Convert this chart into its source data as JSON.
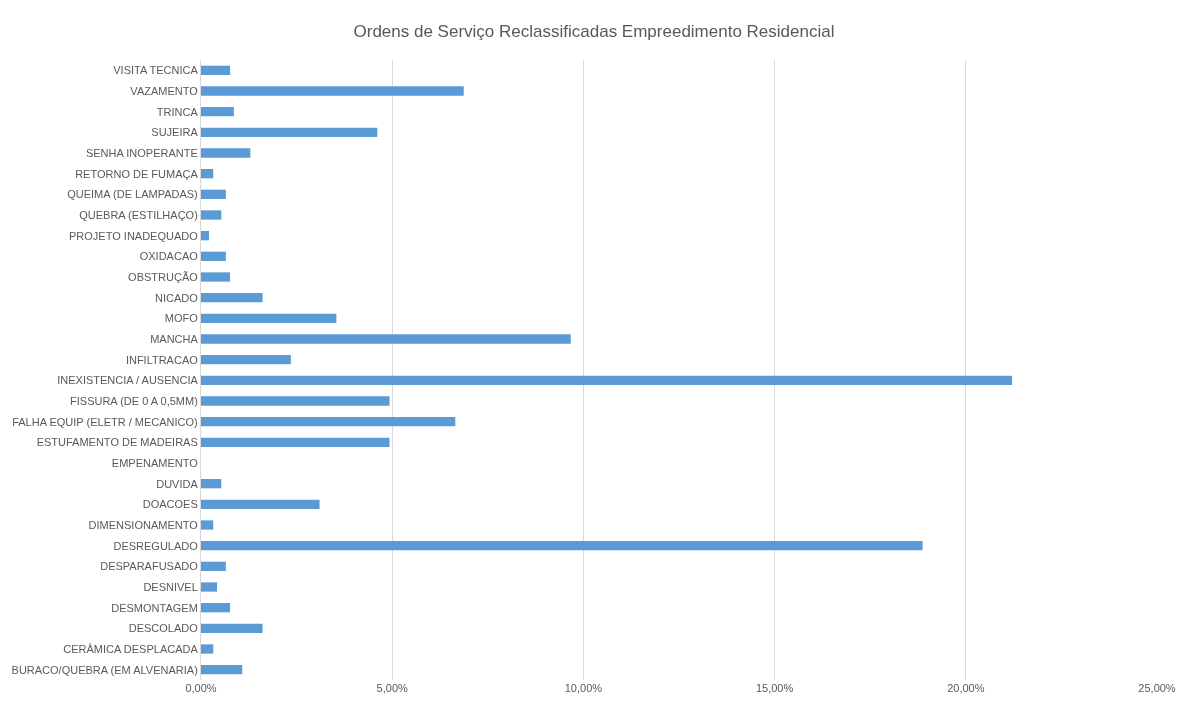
{
  "chart_data": {
    "type": "bar",
    "orientation": "horizontal",
    "title": "Ordens de Serviço Reclassificadas Empreedimento Residencial",
    "categories": [
      "VISITA TECNICA",
      "VAZAMENTO",
      "TRINCA",
      "SUJEIRA",
      "SENHA INOPERANTE",
      "RETORNO DE FUMAÇA",
      "QUEIMA (DE LAMPADAS)",
      "QUEBRA (ESTILHAÇO)",
      "PROJETO INADEQUADO",
      "OXIDACAO",
      "OBSTRUÇÃO",
      "NICADO",
      "MOFO",
      "MANCHA",
      "INFILTRACAO",
      "INEXISTENCIA / AUSENCIA",
      "FISSURA (DE 0 A 0,5MM)",
      "FALHA EQUIP (ELETR / MECANICO)",
      "ESTUFAMENTO DE MADEIRAS",
      "EMPENAMENTO",
      "DUVIDA",
      "DOACOES",
      "DIMENSIONAMENTO",
      "DESREGULADO",
      "DESPARAFUSADO",
      "DESNIVEL",
      "DESMONTAGEM",
      "DESCOLADO",
      "CERÂMICA DESPLACADA",
      "BURACO/QUEBRA (EM ALVENARIA)"
    ],
    "values": [
      0.76,
      6.87,
      0.86,
      4.61,
      1.29,
      0.32,
      0.65,
      0.53,
      0.21,
      0.65,
      0.76,
      1.61,
      3.54,
      9.67,
      2.35,
      21.21,
      4.93,
      6.65,
      4.93,
      0,
      0.53,
      3.1,
      0.32,
      18.87,
      0.65,
      0.42,
      0.76,
      1.61,
      0.32,
      1.08
    ],
    "color": "#5b9bd5",
    "xlim": [
      0,
      25
    ],
    "xticks": [
      {
        "value": 0,
        "label": "0,00%"
      },
      {
        "value": 5,
        "label": "5,00%"
      },
      {
        "value": 10,
        "label": "10,00%"
      },
      {
        "value": 15,
        "label": "15,00%"
      },
      {
        "value": 20,
        "label": "20,00%"
      },
      {
        "value": 25,
        "label": "25,00%"
      }
    ],
    "grid": "x"
  }
}
